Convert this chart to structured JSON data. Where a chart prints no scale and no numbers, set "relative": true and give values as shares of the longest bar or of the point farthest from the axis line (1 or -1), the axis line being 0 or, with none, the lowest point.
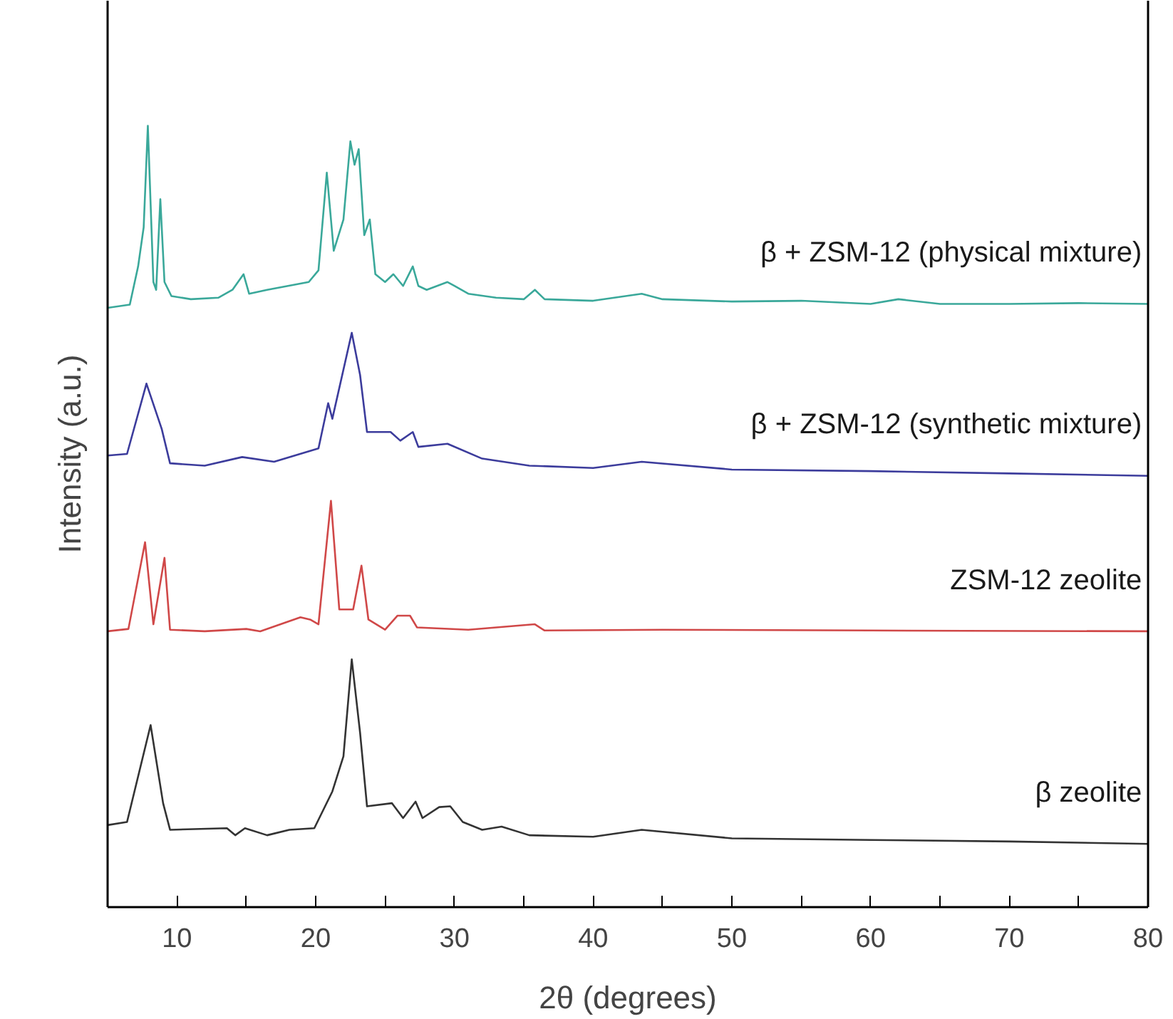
{
  "chart_data": {
    "type": "line",
    "relative": true,
    "xlabel": "2θ (degrees)",
    "ylabel": "Intensity (a.u.)",
    "xlim": [
      5,
      80
    ],
    "xticks": [
      10,
      {
        "value": 15,
        "label": null
      },
      20,
      {
        "value": 25,
        "label": null
      },
      30,
      {
        "value": 35,
        "label": null
      },
      40,
      {
        "value": 45,
        "label": null
      },
      50,
      {
        "value": 55,
        "label": null
      },
      60,
      {
        "value": 65,
        "label": null
      },
      70,
      {
        "value": 75,
        "label": null
      },
      80
    ],
    "tick_labels": "x",
    "grid": false,
    "legend": false,
    "marker": "none",
    "line_style": "solid",
    "series": [
      {
        "name": "β + ZSM-12 (physical mixture)",
        "color": "#3aa89a",
        "x": [
          5,
          6.6,
          7.2,
          7.6,
          7.9,
          8.3,
          8.5,
          8.8,
          9.1,
          9.6,
          11,
          13,
          14,
          14.8,
          15.2,
          16.5,
          18,
          19.5,
          20.2,
          20.8,
          21.3,
          22.0,
          22.5,
          22.8,
          23.1,
          23.5,
          23.9,
          24.3,
          25,
          25.6,
          26.3,
          27,
          27.4,
          28,
          29.5,
          30,
          31,
          33,
          35,
          35.8,
          36.5,
          40,
          43.5,
          45,
          50,
          55,
          60,
          62,
          65,
          70,
          75,
          80
        ],
        "values": [
          0.767,
          0.771,
          0.82,
          0.87,
          1.0,
          0.8,
          0.79,
          0.906,
          0.8,
          0.782,
          0.778,
          0.78,
          0.79,
          0.81,
          0.785,
          0.79,
          0.795,
          0.8,
          0.815,
          0.94,
          0.84,
          0.88,
          0.98,
          0.95,
          0.97,
          0.86,
          0.88,
          0.81,
          0.8,
          0.81,
          0.795,
          0.82,
          0.795,
          0.79,
          0.8,
          0.795,
          0.785,
          0.78,
          0.778,
          0.79,
          0.778,
          0.776,
          0.785,
          0.778,
          0.775,
          0.776,
          0.772,
          0.778,
          0.772,
          0.772,
          0.773,
          0.772
        ]
      },
      {
        "name": "β + ZSM-12 (synthetic mixture)",
        "color": "#3c3c9c",
        "x": [
          5,
          6.4,
          7.8,
          8.9,
          9.5,
          12,
          14.7,
          17,
          20.2,
          20.9,
          21.2,
          22.6,
          23.2,
          23.7,
          25.4,
          26.1,
          27,
          27.4,
          29.5,
          32,
          35.4,
          40,
          43.5,
          50,
          60,
          70,
          80
        ],
        "values": [
          0.578,
          0.58,
          0.67,
          0.612,
          0.568,
          0.565,
          0.576,
          0.57,
          0.587,
          0.645,
          0.625,
          0.735,
          0.681,
          0.608,
          0.608,
          0.597,
          0.608,
          0.589,
          0.593,
          0.574,
          0.565,
          0.562,
          0.57,
          0.56,
          0.558,
          0.555,
          0.552
        ]
      },
      {
        "name": "ZSM-12 zeolite",
        "color": "#d04848",
        "x": [
          5,
          6.5,
          7.7,
          8.3,
          9.1,
          9.5,
          12,
          15,
          16,
          18.9,
          19.6,
          20.2,
          21.1,
          21.7,
          22.7,
          23.3,
          23.8,
          25,
          25.9,
          26.8,
          27.3,
          31,
          35.8,
          36.5,
          45,
          60,
          80
        ],
        "values": [
          0.353,
          0.356,
          0.467,
          0.362,
          0.447,
          0.355,
          0.353,
          0.356,
          0.353,
          0.371,
          0.368,
          0.362,
          0.52,
          0.381,
          0.381,
          0.437,
          0.368,
          0.355,
          0.373,
          0.373,
          0.358,
          0.355,
          0.362,
          0.354,
          0.355,
          0.354,
          0.353
        ]
      },
      {
        "name": "β zeolite",
        "color": "#333333",
        "x": [
          5,
          6.4,
          8.1,
          9.0,
          9.5,
          13.6,
          14.2,
          14.9,
          16.5,
          18.1,
          19.9,
          21.2,
          22.0,
          22.6,
          23.2,
          23.7,
          25.5,
          26.3,
          27.2,
          27.7,
          28.9,
          29.7,
          30.6,
          32,
          33.4,
          35.4,
          40,
          43.5,
          50,
          60,
          70,
          80
        ],
        "values": [
          0.105,
          0.109,
          0.233,
          0.133,
          0.099,
          0.101,
          0.092,
          0.101,
          0.092,
          0.099,
          0.101,
          0.148,
          0.193,
          0.317,
          0.223,
          0.129,
          0.133,
          0.114,
          0.135,
          0.114,
          0.128,
          0.129,
          0.109,
          0.099,
          0.103,
          0.092,
          0.09,
          0.099,
          0.088,
          0.086,
          0.084,
          0.081
        ]
      }
    ]
  }
}
